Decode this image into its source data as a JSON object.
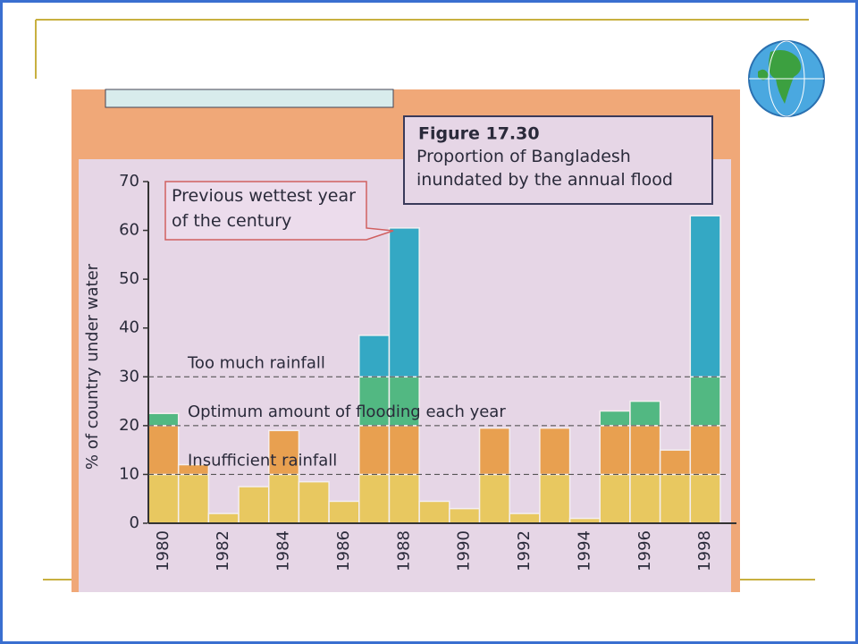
{
  "chart_data": {
    "type": "bar",
    "stacked": true,
    "y_axis_label": "% of country under water",
    "figure_label": "Figure 17.30",
    "title": "Proportion of Bangladesh inundated by the annual flood",
    "callout": "Previous wettest year of the century",
    "categories": [
      "1980",
      null,
      "1982",
      null,
      "1984",
      null,
      "1986",
      null,
      "1988",
      null,
      "1990",
      null,
      "1992",
      null,
      "1994",
      null,
      "1996",
      null,
      "1998"
    ],
    "series": [
      {
        "color": "#e8c860",
        "values": [
          10,
          10,
          2,
          7.5,
          10,
          8.5,
          4.5,
          10,
          10,
          4.5,
          3,
          10,
          2,
          10,
          1,
          10,
          10,
          10,
          10
        ]
      },
      {
        "color": "#e8a050",
        "values": [
          10,
          2,
          0,
          0,
          9,
          0,
          0,
          10,
          10,
          0,
          0,
          9.5,
          0,
          9.5,
          0,
          10,
          10,
          5,
          10
        ]
      },
      {
        "color": "#52b882",
        "values": [
          2.5,
          0,
          0,
          0,
          0,
          0,
          0,
          10,
          10,
          0,
          0,
          0,
          0,
          0,
          0,
          3,
          5,
          0,
          10
        ]
      },
      {
        "color": "#34a8c4",
        "values": [
          0,
          0,
          0,
          0,
          0,
          0,
          0,
          8.5,
          30.5,
          0,
          0,
          0,
          0,
          0,
          0,
          0,
          0,
          0,
          33
        ]
      }
    ],
    "annotations": [
      {
        "text": "Too much rainfall",
        "y": 30
      },
      {
        "text": "Optimum amount of flooding each year",
        "y": 20
      },
      {
        "text": "Insufficient rainfall",
        "y": 10
      }
    ],
    "ylim": [
      0,
      70
    ],
    "yticks": [
      0,
      10,
      20,
      30,
      40,
      50,
      60,
      70
    ]
  }
}
